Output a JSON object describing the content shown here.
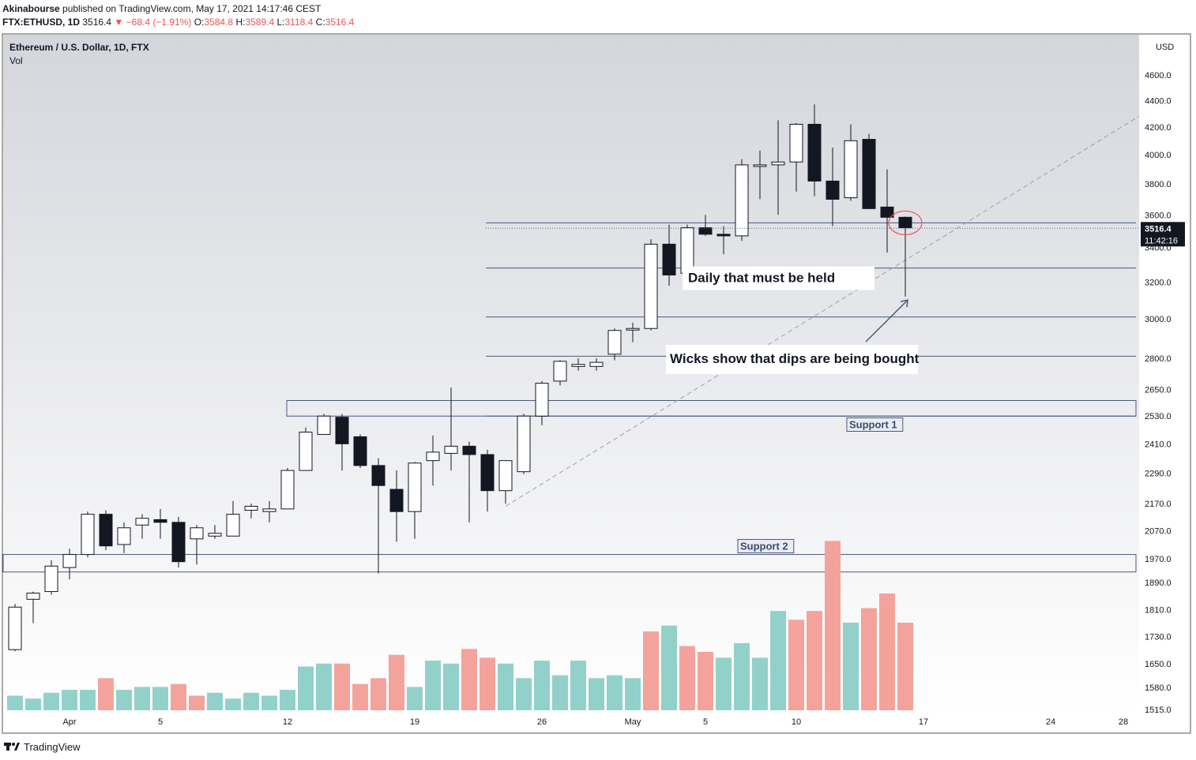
{
  "header": {
    "author": "Akinabourse",
    "published": "published on TradingView.com, May 17, 2021 14:17:46 CEST",
    "symbol": "FTX:ETHUSD, 1D",
    "price": "3516.4",
    "change_arrow": "▼",
    "change": "−68.4 (−1.91%)",
    "o_label": "O:",
    "o": "3584.8",
    "h_label": "H:",
    "h": "3589.4",
    "l_label": "L:",
    "l": "3118.4",
    "c_label": "C:",
    "c": "3516.4"
  },
  "footer": {
    "brand": "TradingView"
  },
  "colors": {
    "up_volume": "#92d1c9",
    "down_volume": "#f4a39c",
    "candle_up": "#ffffff",
    "candle_down": "#131722",
    "level_line": "#4a5a7a",
    "accent_red": "#ef5350"
  },
  "chart_data": {
    "type": "candlestick",
    "title": "Ethereum / U.S. Dollar, 1D, FTX",
    "subtitle": "Vol",
    "currency": "USD",
    "y_scale": "log",
    "ylim": [
      1500,
      4800
    ],
    "price_ticks": [
      "4600.0",
      "4400.0",
      "4200.0",
      "4000.0",
      "3800.0",
      "3600.0",
      "3400.0",
      "3200.0",
      "3000.0",
      "2800.0",
      "2650.0",
      "2530.0",
      "2410.0",
      "2290.0",
      "2170.0",
      "2070.0",
      "1970.0",
      "1890.0",
      "1810.0",
      "1730.0",
      "1650.0",
      "1580.0",
      "1515.0"
    ],
    "price_tick_values": [
      4600,
      4400,
      4200,
      4000,
      3800,
      3600,
      3400,
      3200,
      3000,
      2800,
      2650,
      2530,
      2410,
      2290,
      2170,
      2070,
      1970,
      1890,
      1810,
      1730,
      1650,
      1580,
      1515
    ],
    "time_ticks": [
      "Apr",
      "5",
      "12",
      "19",
      "26",
      "May",
      "5",
      "10",
      "17",
      "24",
      "28"
    ],
    "time_tick_days": [
      3,
      8,
      15,
      22,
      29,
      34,
      38,
      43,
      50,
      57,
      61
    ],
    "last_price_label": "3516.4",
    "countdown_label": "11:42:16",
    "candles": [
      {
        "o": 1680,
        "h": 1820,
        "l": 1675,
        "c": 1810
      },
      {
        "o": 1835,
        "h": 1860,
        "l": 1760,
        "c": 1855
      },
      {
        "o": 1860,
        "h": 1965,
        "l": 1850,
        "c": 1945
      },
      {
        "o": 1940,
        "h": 2005,
        "l": 1900,
        "c": 1985
      },
      {
        "o": 1985,
        "h": 2140,
        "l": 1975,
        "c": 2130
      },
      {
        "o": 2130,
        "h": 2145,
        "l": 2000,
        "c": 2015
      },
      {
        "o": 2020,
        "h": 2100,
        "l": 1990,
        "c": 2080
      },
      {
        "o": 2090,
        "h": 2130,
        "l": 2040,
        "c": 2115
      },
      {
        "o": 2110,
        "h": 2150,
        "l": 2040,
        "c": 2100
      },
      {
        "o": 2100,
        "h": 2120,
        "l": 1940,
        "c": 1960
      },
      {
        "o": 2040,
        "h": 2090,
        "l": 1950,
        "c": 2080
      },
      {
        "o": 2050,
        "h": 2090,
        "l": 2040,
        "c": 2060
      },
      {
        "o": 2050,
        "h": 2180,
        "l": 2050,
        "c": 2130
      },
      {
        "o": 2145,
        "h": 2170,
        "l": 2115,
        "c": 2160
      },
      {
        "o": 2140,
        "h": 2180,
        "l": 2100,
        "c": 2150
      },
      {
        "o": 2150,
        "h": 2310,
        "l": 2150,
        "c": 2300
      },
      {
        "o": 2300,
        "h": 2480,
        "l": 2300,
        "c": 2460
      },
      {
        "o": 2450,
        "h": 2540,
        "l": 2450,
        "c": 2530
      },
      {
        "o": 2525,
        "h": 2540,
        "l": 2300,
        "c": 2410
      },
      {
        "o": 2440,
        "h": 2450,
        "l": 2310,
        "c": 2320
      },
      {
        "o": 2320,
        "h": 2350,
        "l": 1920,
        "c": 2240
      },
      {
        "o": 2225,
        "h": 2300,
        "l": 2030,
        "c": 2140
      },
      {
        "o": 2140,
        "h": 2335,
        "l": 2040,
        "c": 2330
      },
      {
        "o": 2340,
        "h": 2445,
        "l": 2240,
        "c": 2375
      },
      {
        "o": 2370,
        "h": 2660,
        "l": 2300,
        "c": 2400
      },
      {
        "o": 2400,
        "h": 2420,
        "l": 2100,
        "c": 2365
      },
      {
        "o": 2365,
        "h": 2385,
        "l": 2140,
        "c": 2220
      },
      {
        "o": 2220,
        "h": 2335,
        "l": 2170,
        "c": 2340
      },
      {
        "o": 2295,
        "h": 2540,
        "l": 2285,
        "c": 2530
      },
      {
        "o": 2530,
        "h": 2690,
        "l": 2490,
        "c": 2680
      },
      {
        "o": 2690,
        "h": 2790,
        "l": 2670,
        "c": 2785
      },
      {
        "o": 2760,
        "h": 2800,
        "l": 2740,
        "c": 2770
      },
      {
        "o": 2760,
        "h": 2800,
        "l": 2740,
        "c": 2780
      },
      {
        "o": 2820,
        "h": 2950,
        "l": 2790,
        "c": 2940
      },
      {
        "o": 2945,
        "h": 2980,
        "l": 2880,
        "c": 2950
      },
      {
        "o": 2950,
        "h": 3450,
        "l": 2940,
        "c": 3420
      },
      {
        "o": 3420,
        "h": 3540,
        "l": 3180,
        "c": 3240
      },
      {
        "o": 3250,
        "h": 3540,
        "l": 3200,
        "c": 3520
      },
      {
        "o": 3520,
        "h": 3600,
        "l": 3470,
        "c": 3480
      },
      {
        "o": 3480,
        "h": 3530,
        "l": 3360,
        "c": 3470
      },
      {
        "o": 3470,
        "h": 3970,
        "l": 3440,
        "c": 3930
      },
      {
        "o": 3920,
        "h": 4030,
        "l": 3700,
        "c": 3930
      },
      {
        "o": 3930,
        "h": 4250,
        "l": 3600,
        "c": 3950
      },
      {
        "o": 3950,
        "h": 4230,
        "l": 3750,
        "c": 4220
      },
      {
        "o": 4220,
        "h": 4370,
        "l": 3720,
        "c": 3820
      },
      {
        "o": 3820,
        "h": 4050,
        "l": 3530,
        "c": 3700
      },
      {
        "o": 3710,
        "h": 4220,
        "l": 3690,
        "c": 4100
      },
      {
        "o": 4110,
        "h": 4150,
        "l": 3650,
        "c": 3640
      },
      {
        "o": 3650,
        "h": 3900,
        "l": 3370,
        "c": 3585
      },
      {
        "o": 3585,
        "h": 3590,
        "l": 3120,
        "c": 3520
      }
    ],
    "volume_relative": [
      0.05,
      0.04,
      0.06,
      0.07,
      0.07,
      0.11,
      0.07,
      0.08,
      0.08,
      0.09,
      0.05,
      0.06,
      0.04,
      0.06,
      0.05,
      0.07,
      0.15,
      0.16,
      0.16,
      0.09,
      0.11,
      0.19,
      0.08,
      0.17,
      0.16,
      0.21,
      0.18,
      0.16,
      0.11,
      0.17,
      0.12,
      0.17,
      0.11,
      0.12,
      0.11,
      0.27,
      0.29,
      0.22,
      0.2,
      0.18,
      0.23,
      0.18,
      0.34,
      0.31,
      0.34,
      0.58,
      0.3,
      0.35,
      0.4,
      0.3
    ],
    "volume_down": [
      false,
      false,
      false,
      false,
      false,
      true,
      false,
      false,
      false,
      true,
      true,
      false,
      false,
      false,
      false,
      false,
      false,
      false,
      true,
      true,
      true,
      true,
      false,
      false,
      false,
      true,
      true,
      false,
      false,
      false,
      false,
      false,
      false,
      false,
      false,
      true,
      false,
      true,
      true,
      false,
      false,
      false,
      false,
      true,
      true,
      true,
      false,
      true,
      true,
      true
    ],
    "levels": [
      3550,
      3280,
      3010,
      2810,
      2530
    ],
    "support_zones": [
      {
        "label": "Support 1",
        "from": 2530,
        "to": 2600
      },
      {
        "label": "Support 2",
        "from": 1925,
        "to": 1985
      }
    ],
    "annotations": {
      "daily_held": "Daily that must be held",
      "wicks": "Wicks show that dips are being bought"
    }
  }
}
